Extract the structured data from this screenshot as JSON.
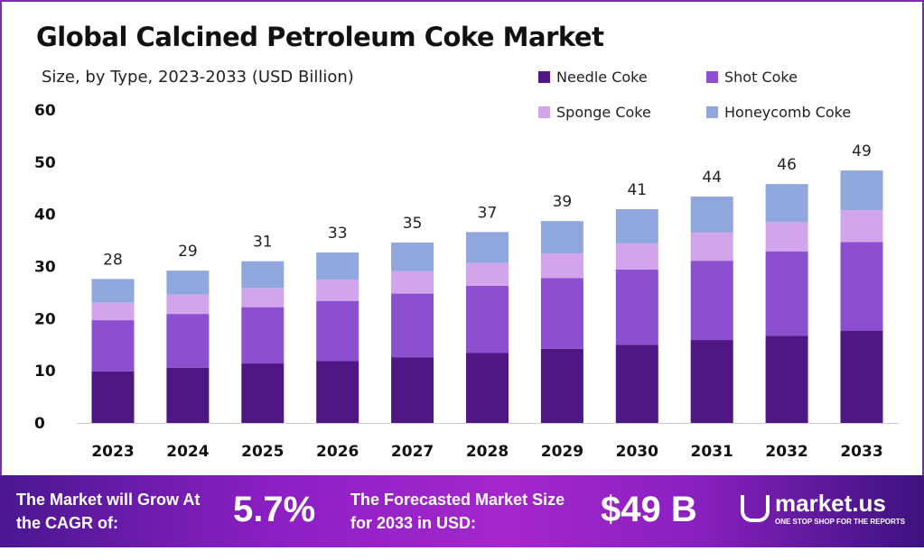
{
  "chart_data": {
    "type": "bar",
    "stacked": true,
    "title": "Global Calcined Petroleum Coke Market",
    "subtitle": "Size, by Type, 2023-2033 (USD Billion)",
    "categories": [
      "2023",
      "2024",
      "2025",
      "2026",
      "2027",
      "2028",
      "2029",
      "2030",
      "2031",
      "2032",
      "2033"
    ],
    "series": [
      {
        "name": "Needle Coke",
        "color": "#4e1783",
        "values": [
          9.9,
          10.6,
          11.4,
          11.9,
          12.6,
          13.4,
          14.2,
          15.0,
          15.9,
          16.7,
          17.7
        ]
      },
      {
        "name": "Shot Coke",
        "color": "#8b4fd0",
        "values": [
          9.8,
          10.3,
          10.8,
          11.5,
          12.2,
          12.9,
          13.6,
          14.4,
          15.2,
          16.2,
          17.0
        ]
      },
      {
        "name": "Sponge Coke",
        "color": "#d2a4ec",
        "values": [
          3.4,
          3.7,
          3.7,
          4.1,
          4.3,
          4.4,
          4.7,
          5.0,
          5.4,
          5.6,
          6.1
        ]
      },
      {
        "name": "Honeycomb Coke",
        "color": "#8fa7dc",
        "values": [
          4.5,
          4.6,
          5.1,
          5.2,
          5.5,
          5.9,
          6.2,
          6.6,
          6.9,
          7.3,
          7.6
        ]
      }
    ],
    "totals": [
      "28",
      "29",
      "31",
      "33",
      "35",
      "37",
      "39",
      "41",
      "44",
      "46",
      "49"
    ],
    "yticks": [
      "0",
      "10",
      "20",
      "30",
      "40",
      "50",
      "60"
    ],
    "ylim": [
      0,
      60
    ],
    "grid": false,
    "legend_placement": "top-right"
  },
  "banner": {
    "cagr_label": "The Market will Grow At the CAGR of:",
    "cagr_value": "5.7%",
    "forecast_label": "The Forecasted Market Size for 2033 in USD:",
    "forecast_value": "$49 B",
    "logo_text": "market.us",
    "logo_tagline": "ONE STOP SHOP FOR THE REPORTS"
  }
}
